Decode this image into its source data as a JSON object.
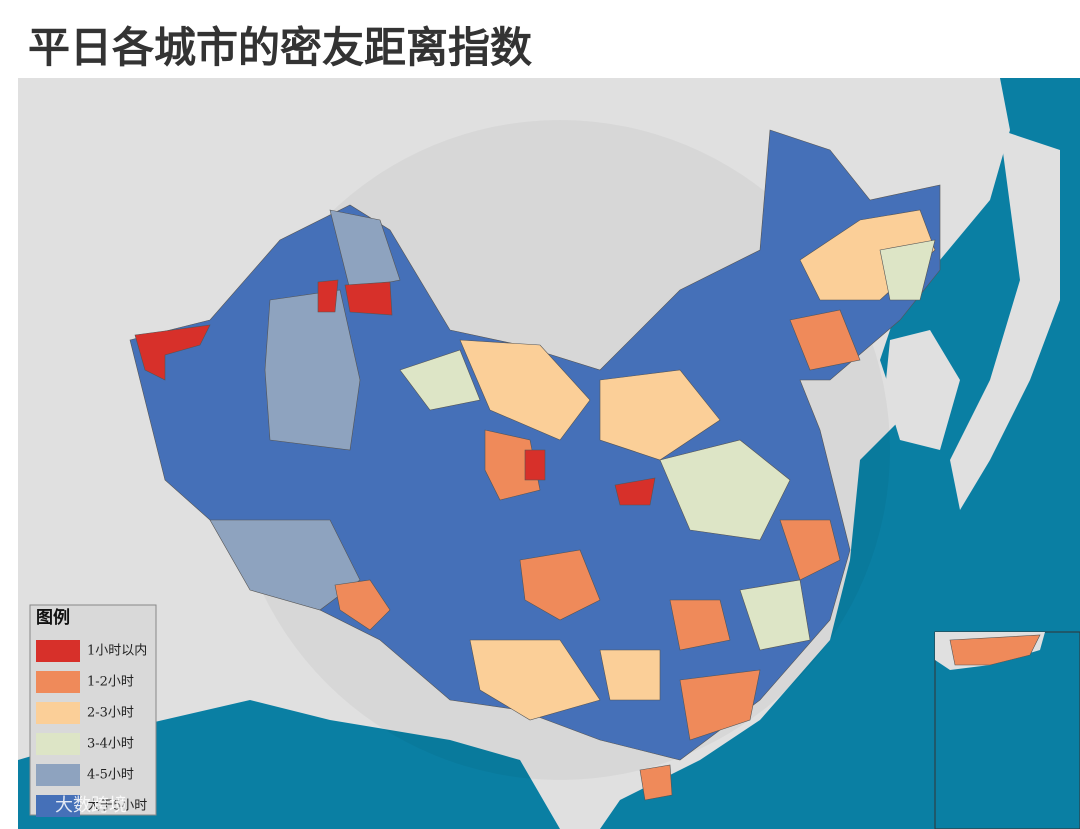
{
  "header": {
    "title": "平日各城市的密友距离指数"
  },
  "legend": {
    "title": "图例",
    "items": [
      {
        "label": "1小时以内",
        "color": "#d7302a"
      },
      {
        "label": "1-2小时",
        "color": "#ef8a5a"
      },
      {
        "label": "2-3小时",
        "color": "#fbcf98"
      },
      {
        "label": "3-4小时",
        "color": "#dde5c6"
      },
      {
        "label": "4-5小时",
        "color": "#8ea3bf"
      },
      {
        "label": "大于5小时",
        "color": "#4570b8"
      }
    ]
  },
  "watermark": "大数跨境"
}
